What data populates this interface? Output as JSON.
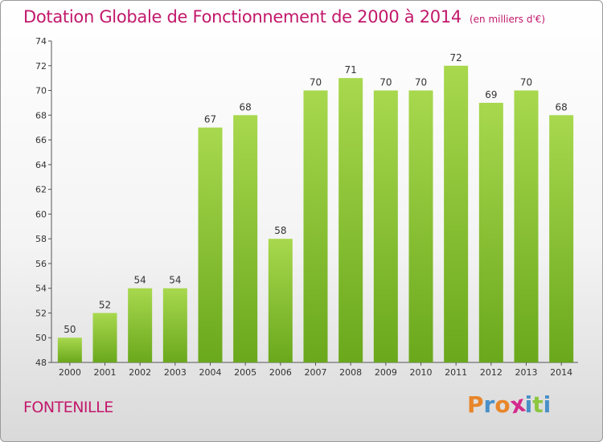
{
  "header": {
    "title": "Dotation Globale de Fonctionnement de 2000 à 2014",
    "subtitle": "(en milliers d'€)"
  },
  "footer": {
    "commune": "FONTENILLE",
    "logo_letters": [
      "P",
      "r",
      "o",
      "x",
      "i",
      "t",
      "i"
    ],
    "logo_colors": [
      "#e8862a",
      "#4a90c8",
      "#e8862a",
      "#d42a8c",
      "#4a90c8",
      "#8cc63f",
      "#4a90c8"
    ]
  },
  "chart_data": {
    "type": "bar",
    "categories": [
      "2000",
      "2001",
      "2002",
      "2003",
      "2004",
      "2005",
      "2006",
      "2007",
      "2008",
      "2009",
      "2010",
      "2011",
      "2012",
      "2013",
      "2014"
    ],
    "values": [
      50,
      52,
      54,
      54,
      67,
      68,
      58,
      70,
      71,
      70,
      70,
      72,
      69,
      70,
      68
    ],
    "ylim": [
      48,
      74
    ],
    "yticks": [
      48,
      50,
      52,
      54,
      56,
      58,
      60,
      62,
      64,
      66,
      68,
      70,
      72,
      74
    ],
    "grid": false,
    "bar_color_light": "#a8d84e",
    "bar_color_dark": "#6aa81c"
  }
}
